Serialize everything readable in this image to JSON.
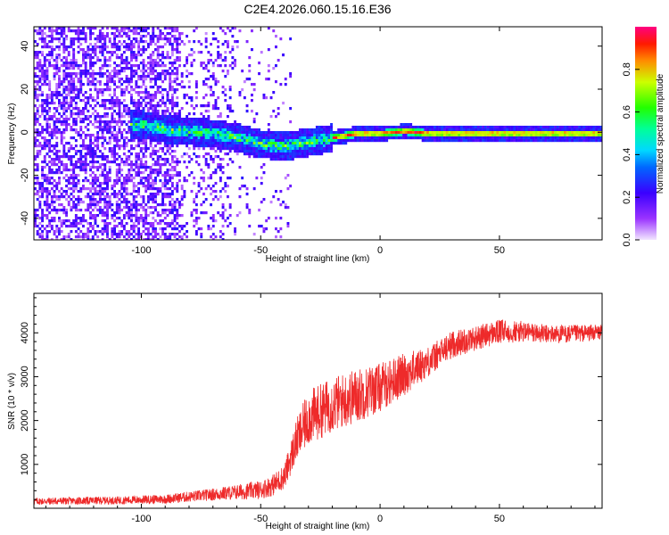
{
  "title": "C2E4.2026.060.15.16.E36",
  "colors": {
    "snr_line": "#ee2a2a",
    "frame": "#000000"
  },
  "chart_data": [
    {
      "type": "heatmap",
      "name": "spectrogram",
      "xlabel": "Height of straight line (km)",
      "ylabel": "Frequency (Hz)",
      "xlim": [
        -145,
        93
      ],
      "ylim": [
        -50,
        49
      ],
      "xticks": [
        -100,
        -50,
        0,
        50
      ],
      "xtick_labels": [
        "-100",
        "-50",
        "0",
        "50"
      ],
      "yticks": [
        -40,
        -20,
        0,
        20,
        40
      ],
      "ytick_labels": [
        "-40",
        "-20",
        "0",
        "20",
        "40"
      ],
      "ridge": {
        "description": "dominant frequency vs height",
        "x": [
          -100,
          -90,
          -80,
          -70,
          -60,
          -50,
          -40,
          -30,
          -20,
          -10,
          0,
          10,
          20,
          40,
          60,
          93
        ],
        "y": [
          4,
          2,
          1,
          0,
          -2,
          -5,
          -6,
          -4,
          -2,
          0,
          0,
          1,
          0,
          0,
          0,
          0
        ]
      },
      "colorbar": {
        "label": "Normalized spectral amplitude",
        "range": [
          0.0,
          1.0
        ],
        "ticks": [
          0.0,
          0.2,
          0.4,
          0.6,
          0.8
        ],
        "tick_labels": [
          "0.0",
          "0.2",
          "0.4",
          "0.6",
          "0.8"
        ]
      }
    },
    {
      "type": "line",
      "name": "snr",
      "xlabel": "Height of straight line (km)",
      "ylabel": "SNR (10 * v/v)",
      "xlim": [
        -145,
        93
      ],
      "ylim": [
        0,
        4900
      ],
      "xticks": [
        -100,
        -50,
        0,
        50
      ],
      "xtick_labels": [
        "-100",
        "-50",
        "0",
        "50"
      ],
      "yticks": [
        1000,
        2000,
        3000,
        4000
      ],
      "ytick_labels": [
        "1000",
        "2000",
        "3000",
        "4000"
      ],
      "series": [
        {
          "name": "SNR",
          "x": [
            -145,
            -130,
            -110,
            -90,
            -70,
            -60,
            -50,
            -45,
            -40,
            -35,
            -30,
            -20,
            -10,
            0,
            10,
            20,
            30,
            40,
            50,
            60,
            70,
            80,
            93
          ],
          "y": [
            150,
            160,
            170,
            200,
            300,
            350,
            400,
            500,
            700,
            1500,
            2000,
            2300,
            2500,
            2700,
            3000,
            3300,
            3700,
            3850,
            4000,
            4000,
            3950,
            3950,
            4000
          ],
          "noise_amplitude": [
            120,
            120,
            130,
            150,
            200,
            250,
            300,
            350,
            400,
            700,
            900,
            900,
            900,
            800,
            700,
            500,
            450,
            400,
            400,
            350,
            300,
            300,
            250
          ]
        }
      ]
    }
  ]
}
